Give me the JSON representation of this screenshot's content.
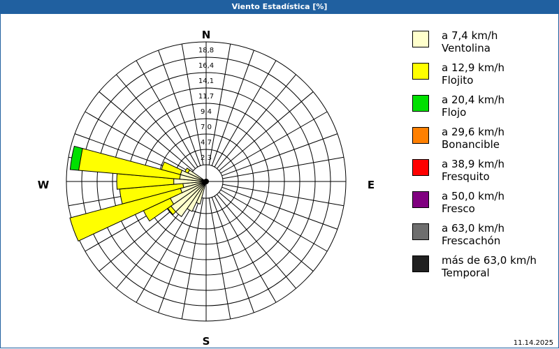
{
  "title": "Viento Estadística [%]",
  "date": "11.14.2025",
  "chart_data": {
    "type": "wind-rose",
    "title": "Viento Estadística [%]",
    "compass_labels": [
      "N",
      "E",
      "S",
      "W"
    ],
    "radial_ticks": [
      "2,3",
      "4,7",
      "7,0",
      "9,4",
      "11,7",
      "14,1",
      "16,4",
      "18,8"
    ],
    "radial_max": 18.8,
    "sector_width_deg": 10,
    "classes": [
      {
        "range": "a 7,4 km/h",
        "name": "Ventolina",
        "color": "#ffffcc"
      },
      {
        "range": "a 12,9 km/h",
        "name": "Flojito",
        "color": "#ffff00"
      },
      {
        "range": "a 20,4 km/h",
        "name": "Flojo",
        "color": "#00e000"
      },
      {
        "range": "a 29,6 km/h",
        "name": "Bonancible",
        "color": "#ff8000"
      },
      {
        "range": "a 38,9 km/h",
        "name": "Fresquito",
        "color": "#ff0000"
      },
      {
        "range": "a 50,0 km/h",
        "name": "Fresco",
        "color": "#800080"
      },
      {
        "range": "a 63,0 km/h",
        "name": "Frescachón",
        "color": "#6e6e6e"
      },
      {
        "range": "más de 63,0 km/h",
        "name": "Temporal",
        "color": "#202020"
      }
    ],
    "sectors": [
      {
        "dir": 200,
        "values": [
          1.0,
          0,
          0
        ]
      },
      {
        "dir": 210,
        "values": [
          2.5,
          0,
          0
        ]
      },
      {
        "dir": 220,
        "values": [
          4.0,
          0,
          0
        ]
      },
      {
        "dir": 230,
        "values": [
          4.0,
          0.6,
          0
        ]
      },
      {
        "dir": 240,
        "values": [
          3.5,
          4.5,
          0
        ]
      },
      {
        "dir": 250,
        "values": [
          1.5,
          17.5,
          0
        ]
      },
      {
        "dir": 260,
        "values": [
          1.0,
          9.7,
          0
        ]
      },
      {
        "dir": 270,
        "values": [
          2.4,
          8.7,
          0
        ]
      },
      {
        "dir": 280,
        "values": [
          1.5,
          15.5,
          1.3
        ]
      },
      {
        "dir": 290,
        "values": [
          1.5,
          3.0,
          0
        ]
      },
      {
        "dir": 300,
        "values": [
          0.5,
          0.5,
          0
        ]
      }
    ]
  }
}
